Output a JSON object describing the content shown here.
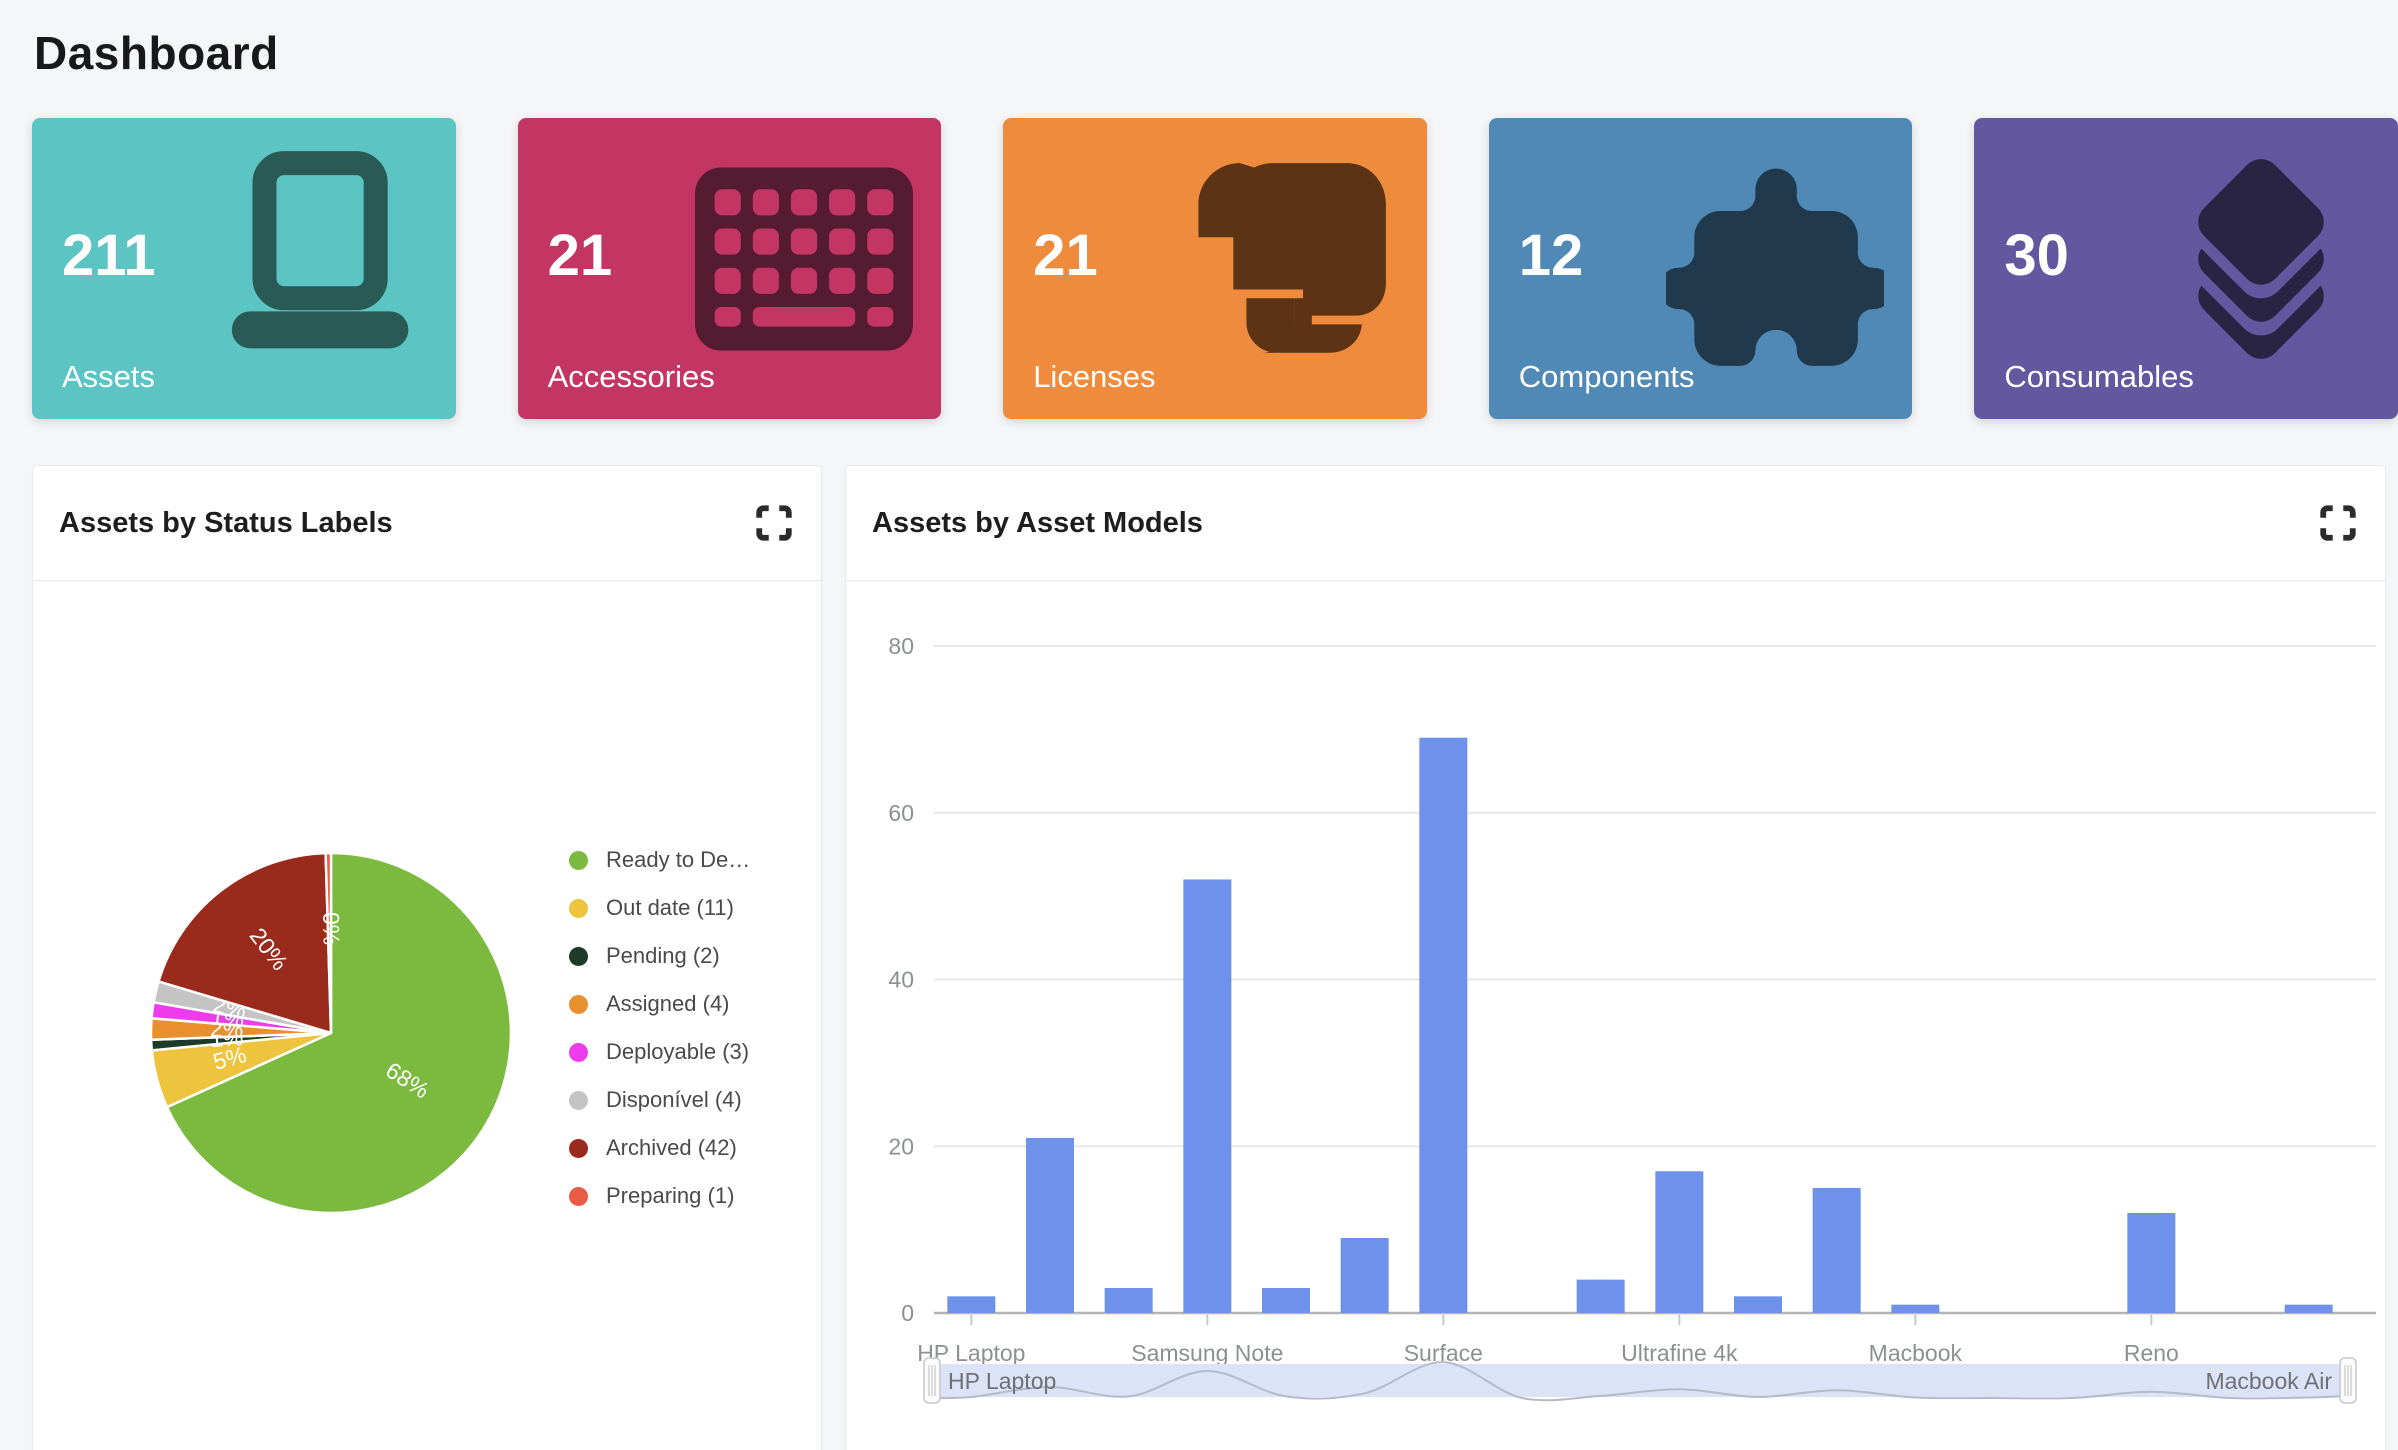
{
  "page": {
    "title": "Dashboard",
    "background": "#f5f6f8"
  },
  "stat_cards": [
    {
      "value": "211",
      "label": "Assets",
      "icon": "laptop-icon",
      "color": "#5cc5c4",
      "icon_color": "#2a5a55"
    },
    {
      "value": "21",
      "label": "Accessories",
      "icon": "keyboard-icon",
      "color": "#c33663",
      "icon_color": "#551b31"
    },
    {
      "value": "21",
      "label": "Licenses",
      "icon": "scroll-icon",
      "color": "#ee8b3d",
      "icon_color": "#5d3316"
    },
    {
      "value": "12",
      "label": "Components",
      "icon": "puzzle-icon",
      "color": "#5089b6",
      "icon_color": "#20394d"
    },
    {
      "value": "30",
      "label": "Consumables",
      "icon": "layers-icon",
      "color": "#63589f",
      "icon_color": "#292344"
    }
  ],
  "panels": {
    "status": {
      "title": "Assets by Status Labels"
    },
    "models": {
      "title": "Assets by Asset Models"
    }
  },
  "chart_data": [
    {
      "type": "pie",
      "title": "Assets by Status Labels",
      "legend_position": "right",
      "slices": [
        {
          "legend": "Ready to De…",
          "value": 144,
          "pct_label": "68%",
          "color": "#7cb93f"
        },
        {
          "legend": "Out date (11)",
          "value": 11,
          "pct_label": "5%",
          "color": "#eec43e"
        },
        {
          "legend": "Pending (2)",
          "value": 2,
          "pct_label": "1%",
          "color": "#1e3b2a"
        },
        {
          "legend": "Assigned (4)",
          "value": 4,
          "pct_label": "2%",
          "color": "#e8902e"
        },
        {
          "legend": "Deployable (3)",
          "value": 3,
          "pct_label": "1%",
          "color": "#ee3ced"
        },
        {
          "legend": "Disponível (4)",
          "value": 4,
          "pct_label": "2%",
          "color": "#c4c4c4"
        },
        {
          "legend": "Archived (42)",
          "value": 42,
          "pct_label": "20%",
          "color": "#9a2a1b"
        },
        {
          "legend": "Preparing (1)",
          "value": 1,
          "pct_label": "0%",
          "color": "#e85c45"
        }
      ]
    },
    {
      "type": "bar",
      "title": "Assets by Asset Models",
      "bar_color": "#6e92ec",
      "ylim": [
        0,
        80
      ],
      "yticks": [
        0,
        20,
        40,
        60,
        80
      ],
      "grid": true,
      "values": [
        2,
        21,
        3,
        52,
        3,
        9,
        69,
        0,
        4,
        17,
        2,
        15,
        1,
        0,
        0,
        12,
        0,
        1
      ],
      "x_tick_labels": [
        {
          "index": 0,
          "label": "HP Laptop"
        },
        {
          "index": 3,
          "label": "Samsung Note"
        },
        {
          "index": 6,
          "label": "Surface"
        },
        {
          "index": 9,
          "label": "Ultrafine 4k"
        },
        {
          "index": 12,
          "label": "Macbook"
        },
        {
          "index": 15,
          "label": "Reno"
        }
      ],
      "range_slider": {
        "start_label": "HP Laptop",
        "end_label": "Macbook Air"
      }
    }
  ],
  "ui_colors": {
    "gridline": "#e8e8e8",
    "axis_line": "#b5b5b5",
    "tick_text": "#8d9093",
    "slider_band": "#dde3f6",
    "slider_wave": "#b3bac9",
    "slider_text": "#6e7077",
    "expand_icon": "#2b2b2b"
  }
}
